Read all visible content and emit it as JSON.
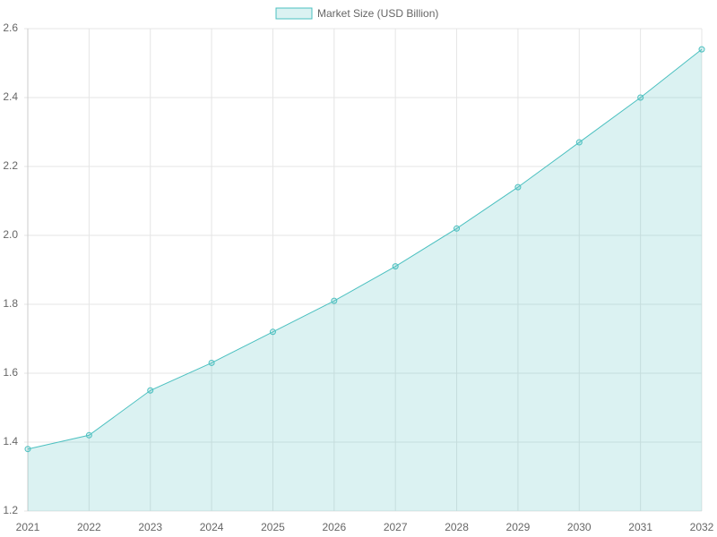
{
  "chart_data": {
    "type": "line",
    "categories": [
      "2021",
      "2022",
      "2023",
      "2024",
      "2025",
      "2026",
      "2027",
      "2028",
      "2029",
      "2030",
      "2031",
      "2032"
    ],
    "series": [
      {
        "name": "Market Size (USD Billion)",
        "color": "#4bc0c0",
        "values": [
          1.38,
          1.42,
          1.55,
          1.63,
          1.72,
          1.81,
          1.91,
          2.02,
          2.14,
          2.27,
          2.4,
          2.54
        ]
      }
    ],
    "fill": true,
    "ylim": [
      1.2,
      2.6
    ],
    "yticks": [
      1.2,
      1.4,
      1.6,
      1.8,
      {
        "value": 2,
        "label": "2.0"
      },
      2.2,
      2.4,
      2.6
    ],
    "grid": true,
    "legend": "top"
  }
}
